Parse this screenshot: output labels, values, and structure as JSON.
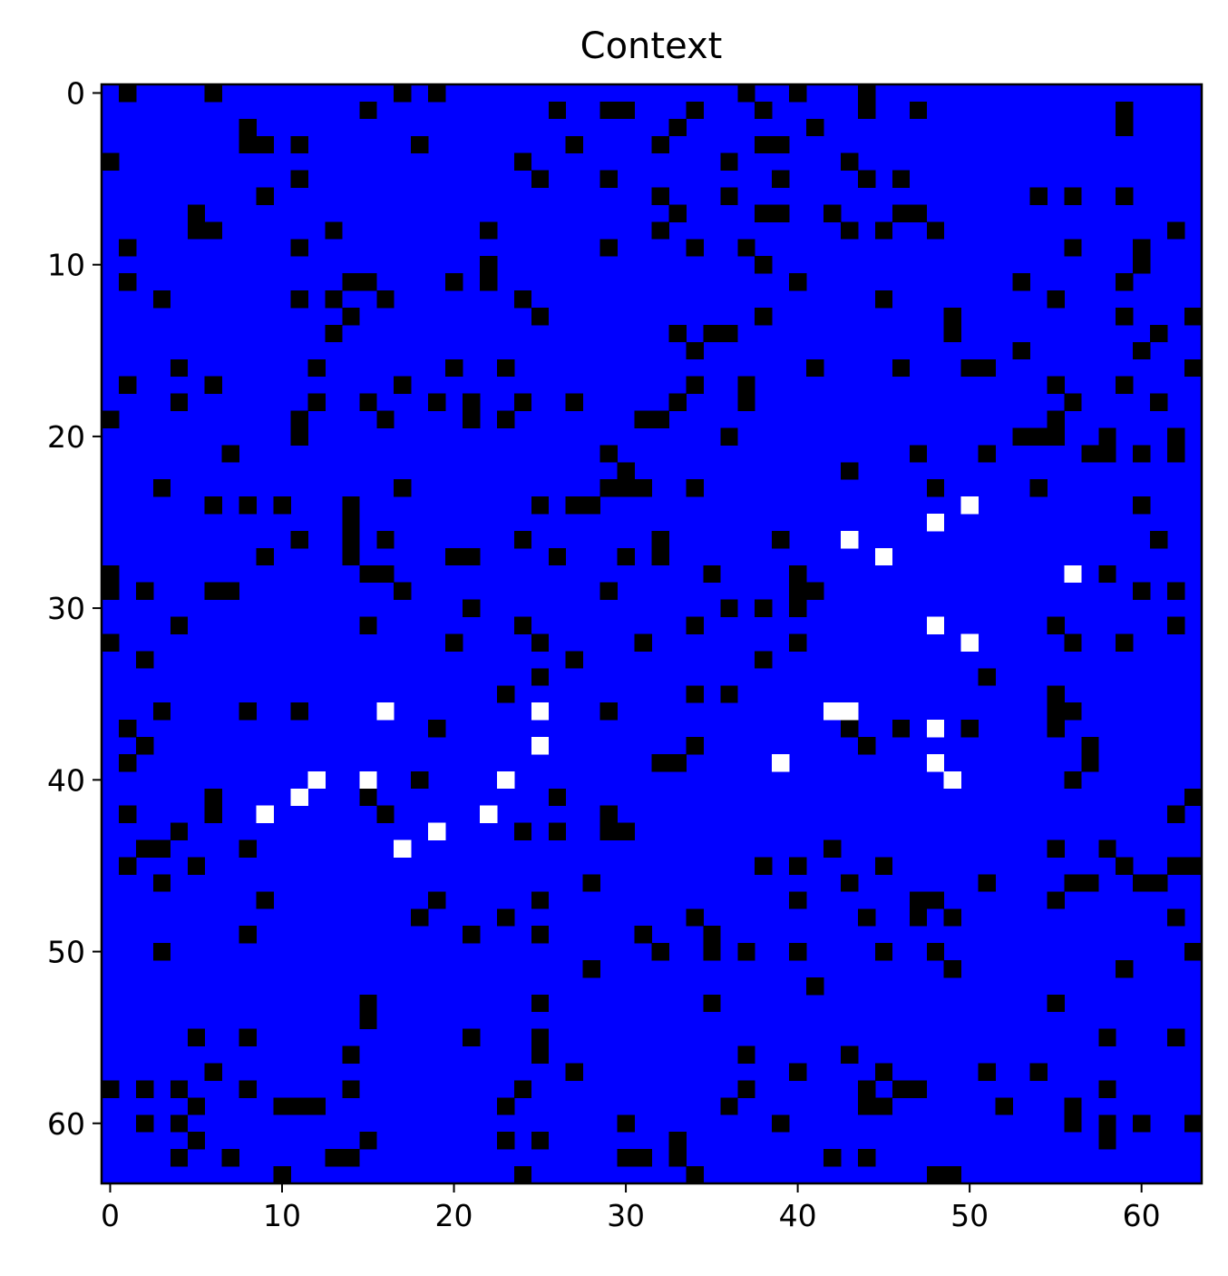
{
  "chart_data": {
    "type": "heatmap",
    "title": "Context",
    "xlabel": "",
    "ylabel": "",
    "xlim": [
      -0.5,
      63.5
    ],
    "ylim": [
      63.5,
      -0.5
    ],
    "grid": false,
    "x_ticks": [
      0,
      10,
      20,
      30,
      40,
      50,
      60
    ],
    "y_ticks": [
      0,
      10,
      20,
      30,
      40,
      50,
      60
    ],
    "size": [
      64,
      64
    ],
    "colors": {
      "empty": "#0000ff",
      "wall": "#000000",
      "agent": "#ffffff"
    },
    "wall_cells": [
      [
        0,
        1
      ],
      [
        0,
        6
      ],
      [
        0,
        17
      ],
      [
        0,
        19
      ],
      [
        0,
        37
      ],
      [
        0,
        40
      ],
      [
        0,
        44
      ],
      [
        1,
        15
      ],
      [
        1,
        26
      ],
      [
        1,
        29
      ],
      [
        1,
        30
      ],
      [
        1,
        34
      ],
      [
        1,
        38
      ],
      [
        1,
        44
      ],
      [
        1,
        47
      ],
      [
        1,
        59
      ],
      [
        2,
        8
      ],
      [
        2,
        33
      ],
      [
        2,
        41
      ],
      [
        2,
        59
      ],
      [
        3,
        8
      ],
      [
        3,
        9
      ],
      [
        3,
        11
      ],
      [
        3,
        18
      ],
      [
        3,
        27
      ],
      [
        3,
        32
      ],
      [
        3,
        38
      ],
      [
        3,
        39
      ],
      [
        4,
        0
      ],
      [
        4,
        24
      ],
      [
        4,
        36
      ],
      [
        4,
        43
      ],
      [
        5,
        11
      ],
      [
        5,
        25
      ],
      [
        5,
        29
      ],
      [
        5,
        39
      ],
      [
        5,
        44
      ],
      [
        5,
        46
      ],
      [
        6,
        9
      ],
      [
        6,
        32
      ],
      [
        6,
        36
      ],
      [
        6,
        54
      ],
      [
        6,
        56
      ],
      [
        6,
        59
      ],
      [
        7,
        5
      ],
      [
        7,
        33
      ],
      [
        7,
        38
      ],
      [
        7,
        39
      ],
      [
        7,
        42
      ],
      [
        7,
        46
      ],
      [
        7,
        47
      ],
      [
        8,
        5
      ],
      [
        8,
        6
      ],
      [
        8,
        13
      ],
      [
        8,
        22
      ],
      [
        8,
        32
      ],
      [
        8,
        43
      ],
      [
        8,
        45
      ],
      [
        8,
        48
      ],
      [
        8,
        62
      ],
      [
        9,
        1
      ],
      [
        9,
        11
      ],
      [
        9,
        29
      ],
      [
        9,
        34
      ],
      [
        9,
        37
      ],
      [
        9,
        56
      ],
      [
        9,
        60
      ],
      [
        10,
        22
      ],
      [
        10,
        38
      ],
      [
        10,
        60
      ],
      [
        11,
        1
      ],
      [
        11,
        14
      ],
      [
        11,
        15
      ],
      [
        11,
        20
      ],
      [
        11,
        22
      ],
      [
        11,
        40
      ],
      [
        11,
        53
      ],
      [
        11,
        59
      ],
      [
        12,
        3
      ],
      [
        12,
        11
      ],
      [
        12,
        13
      ],
      [
        12,
        16
      ],
      [
        12,
        24
      ],
      [
        12,
        45
      ],
      [
        12,
        55
      ],
      [
        13,
        14
      ],
      [
        13,
        25
      ],
      [
        13,
        38
      ],
      [
        13,
        49
      ],
      [
        13,
        59
      ],
      [
        13,
        63
      ],
      [
        14,
        13
      ],
      [
        14,
        33
      ],
      [
        14,
        35
      ],
      [
        14,
        36
      ],
      [
        14,
        49
      ],
      [
        14,
        61
      ],
      [
        15,
        34
      ],
      [
        15,
        53
      ],
      [
        15,
        60
      ],
      [
        16,
        4
      ],
      [
        16,
        12
      ],
      [
        16,
        20
      ],
      [
        16,
        23
      ],
      [
        16,
        41
      ],
      [
        16,
        46
      ],
      [
        16,
        50
      ],
      [
        16,
        51
      ],
      [
        16,
        63
      ],
      [
        17,
        1
      ],
      [
        17,
        6
      ],
      [
        17,
        17
      ],
      [
        17,
        34
      ],
      [
        17,
        37
      ],
      [
        17,
        55
      ],
      [
        17,
        59
      ],
      [
        18,
        4
      ],
      [
        18,
        12
      ],
      [
        18,
        15
      ],
      [
        18,
        19
      ],
      [
        18,
        21
      ],
      [
        18,
        24
      ],
      [
        18,
        27
      ],
      [
        18,
        33
      ],
      [
        18,
        37
      ],
      [
        18,
        56
      ],
      [
        18,
        61
      ],
      [
        19,
        0
      ],
      [
        19,
        11
      ],
      [
        19,
        16
      ],
      [
        19,
        21
      ],
      [
        19,
        23
      ],
      [
        19,
        31
      ],
      [
        19,
        32
      ],
      [
        19,
        55
      ],
      [
        20,
        11
      ],
      [
        20,
        36
      ],
      [
        20,
        53
      ],
      [
        20,
        54
      ],
      [
        20,
        55
      ],
      [
        20,
        58
      ],
      [
        20,
        62
      ],
      [
        21,
        7
      ],
      [
        21,
        29
      ],
      [
        21,
        47
      ],
      [
        21,
        51
      ],
      [
        21,
        57
      ],
      [
        21,
        58
      ],
      [
        21,
        60
      ],
      [
        21,
        62
      ],
      [
        22,
        30
      ],
      [
        22,
        43
      ],
      [
        23,
        3
      ],
      [
        23,
        17
      ],
      [
        23,
        29
      ],
      [
        23,
        30
      ],
      [
        23,
        31
      ],
      [
        23,
        34
      ],
      [
        23,
        48
      ],
      [
        23,
        54
      ],
      [
        24,
        6
      ],
      [
        24,
        8
      ],
      [
        24,
        10
      ],
      [
        24,
        14
      ],
      [
        24,
        25
      ],
      [
        24,
        27
      ],
      [
        24,
        28
      ],
      [
        24,
        60
      ],
      [
        25,
        14
      ],
      [
        26,
        11
      ],
      [
        26,
        14
      ],
      [
        26,
        16
      ],
      [
        26,
        24
      ],
      [
        26,
        32
      ],
      [
        26,
        39
      ],
      [
        26,
        61
      ],
      [
        27,
        9
      ],
      [
        27,
        14
      ],
      [
        27,
        20
      ],
      [
        27,
        21
      ],
      [
        27,
        26
      ],
      [
        27,
        30
      ],
      [
        27,
        32
      ],
      [
        28,
        0
      ],
      [
        28,
        15
      ],
      [
        28,
        16
      ],
      [
        28,
        35
      ],
      [
        28,
        40
      ],
      [
        28,
        58
      ],
      [
        29,
        0
      ],
      [
        29,
        2
      ],
      [
        29,
        6
      ],
      [
        29,
        7
      ],
      [
        29,
        17
      ],
      [
        29,
        29
      ],
      [
        29,
        40
      ],
      [
        29,
        41
      ],
      [
        29,
        60
      ],
      [
        29,
        62
      ],
      [
        30,
        21
      ],
      [
        30,
        36
      ],
      [
        30,
        38
      ],
      [
        30,
        40
      ],
      [
        31,
        4
      ],
      [
        31,
        15
      ],
      [
        31,
        24
      ],
      [
        31,
        34
      ],
      [
        31,
        55
      ],
      [
        31,
        62
      ],
      [
        32,
        0
      ],
      [
        32,
        20
      ],
      [
        32,
        25
      ],
      [
        32,
        31
      ],
      [
        32,
        40
      ],
      [
        32,
        56
      ],
      [
        32,
        59
      ],
      [
        33,
        2
      ],
      [
        33,
        27
      ],
      [
        33,
        38
      ],
      [
        34,
        25
      ],
      [
        34,
        51
      ],
      [
        35,
        23
      ],
      [
        35,
        34
      ],
      [
        35,
        36
      ],
      [
        35,
        55
      ],
      [
        36,
        3
      ],
      [
        36,
        8
      ],
      [
        36,
        11
      ],
      [
        36,
        29
      ],
      [
        36,
        55
      ],
      [
        36,
        56
      ],
      [
        37,
        1
      ],
      [
        37,
        19
      ],
      [
        37,
        43
      ],
      [
        37,
        46
      ],
      [
        37,
        50
      ],
      [
        37,
        55
      ],
      [
        38,
        2
      ],
      [
        38,
        34
      ],
      [
        38,
        44
      ],
      [
        38,
        57
      ],
      [
        39,
        1
      ],
      [
        39,
        32
      ],
      [
        39,
        33
      ],
      [
        39,
        57
      ],
      [
        40,
        18
      ],
      [
        40,
        56
      ],
      [
        41,
        6
      ],
      [
        41,
        15
      ],
      [
        41,
        26
      ],
      [
        41,
        63
      ],
      [
        42,
        1
      ],
      [
        42,
        6
      ],
      [
        42,
        16
      ],
      [
        42,
        29
      ],
      [
        42,
        62
      ],
      [
        43,
        4
      ],
      [
        43,
        24
      ],
      [
        43,
        26
      ],
      [
        43,
        29
      ],
      [
        43,
        30
      ],
      [
        44,
        2
      ],
      [
        44,
        3
      ],
      [
        44,
        8
      ],
      [
        44,
        42
      ],
      [
        44,
        55
      ],
      [
        44,
        58
      ],
      [
        45,
        1
      ],
      [
        45,
        5
      ],
      [
        45,
        38
      ],
      [
        45,
        40
      ],
      [
        45,
        45
      ],
      [
        45,
        59
      ],
      [
        45,
        62
      ],
      [
        45,
        63
      ],
      [
        46,
        3
      ],
      [
        46,
        28
      ],
      [
        46,
        43
      ],
      [
        46,
        51
      ],
      [
        46,
        56
      ],
      [
        46,
        57
      ],
      [
        46,
        60
      ],
      [
        46,
        61
      ],
      [
        47,
        9
      ],
      [
        47,
        19
      ],
      [
        47,
        25
      ],
      [
        47,
        40
      ],
      [
        47,
        47
      ],
      [
        47,
        48
      ],
      [
        47,
        55
      ],
      [
        48,
        18
      ],
      [
        48,
        23
      ],
      [
        48,
        34
      ],
      [
        48,
        44
      ],
      [
        48,
        47
      ],
      [
        48,
        49
      ],
      [
        48,
        62
      ],
      [
        49,
        8
      ],
      [
        49,
        21
      ],
      [
        49,
        25
      ],
      [
        49,
        31
      ],
      [
        49,
        35
      ],
      [
        50,
        3
      ],
      [
        50,
        32
      ],
      [
        50,
        35
      ],
      [
        50,
        37
      ],
      [
        50,
        40
      ],
      [
        50,
        45
      ],
      [
        50,
        48
      ],
      [
        50,
        63
      ],
      [
        51,
        28
      ],
      [
        51,
        49
      ],
      [
        51,
        59
      ],
      [
        52,
        41
      ],
      [
        53,
        15
      ],
      [
        53,
        25
      ],
      [
        53,
        35
      ],
      [
        53,
        55
      ],
      [
        54,
        15
      ],
      [
        55,
        5
      ],
      [
        55,
        8
      ],
      [
        55,
        21
      ],
      [
        55,
        25
      ],
      [
        55,
        58
      ],
      [
        55,
        62
      ],
      [
        56,
        14
      ],
      [
        56,
        25
      ],
      [
        56,
        37
      ],
      [
        56,
        43
      ],
      [
        57,
        6
      ],
      [
        57,
        27
      ],
      [
        57,
        40
      ],
      [
        57,
        45
      ],
      [
        57,
        51
      ],
      [
        57,
        54
      ],
      [
        58,
        0
      ],
      [
        58,
        2
      ],
      [
        58,
        4
      ],
      [
        58,
        8
      ],
      [
        58,
        14
      ],
      [
        58,
        24
      ],
      [
        58,
        37
      ],
      [
        58,
        44
      ],
      [
        58,
        46
      ],
      [
        58,
        47
      ],
      [
        58,
        58
      ],
      [
        59,
        5
      ],
      [
        59,
        10
      ],
      [
        59,
        11
      ],
      [
        59,
        12
      ],
      [
        59,
        23
      ],
      [
        59,
        36
      ],
      [
        59,
        44
      ],
      [
        59,
        45
      ],
      [
        59,
        52
      ],
      [
        59,
        56
      ],
      [
        60,
        2
      ],
      [
        60,
        4
      ],
      [
        60,
        30
      ],
      [
        60,
        39
      ],
      [
        60,
        56
      ],
      [
        60,
        58
      ],
      [
        60,
        60
      ],
      [
        60,
        63
      ],
      [
        61,
        5
      ],
      [
        61,
        15
      ],
      [
        61,
        23
      ],
      [
        61,
        25
      ],
      [
        61,
        33
      ],
      [
        61,
        58
      ],
      [
        62,
        4
      ],
      [
        62,
        7
      ],
      [
        62,
        13
      ],
      [
        62,
        14
      ],
      [
        62,
        30
      ],
      [
        62,
        31
      ],
      [
        62,
        33
      ],
      [
        62,
        42
      ],
      [
        62,
        44
      ],
      [
        63,
        10
      ],
      [
        63,
        24
      ],
      [
        63,
        34
      ],
      [
        63,
        48
      ],
      [
        63,
        49
      ]
    ],
    "agent_cells": [
      [
        24,
        50
      ],
      [
        25,
        48
      ],
      [
        26,
        43
      ],
      [
        27,
        45
      ],
      [
        28,
        56
      ],
      [
        31,
        48
      ],
      [
        32,
        50
      ],
      [
        36,
        16
      ],
      [
        36,
        25
      ],
      [
        36,
        42
      ],
      [
        36,
        43
      ],
      [
        37,
        48
      ],
      [
        38,
        25
      ],
      [
        39,
        39
      ],
      [
        39,
        48
      ],
      [
        40,
        12
      ],
      [
        40,
        15
      ],
      [
        40,
        23
      ],
      [
        40,
        49
      ],
      [
        41,
        11
      ],
      [
        42,
        9
      ],
      [
        42,
        22
      ],
      [
        43,
        19
      ],
      [
        44,
        17
      ]
    ]
  }
}
